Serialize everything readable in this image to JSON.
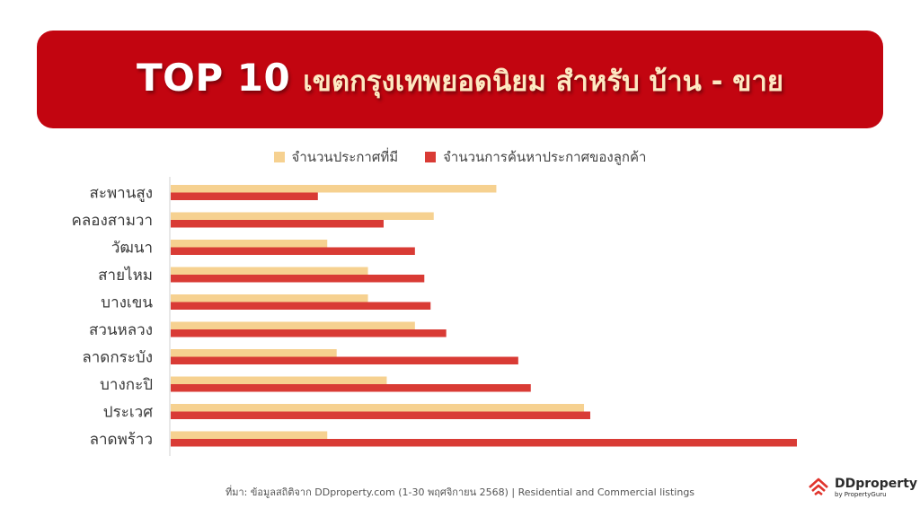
{
  "banner": {
    "title": "TOP 10",
    "subtitle": "เขตกรุงเทพยอดนิยม สำหรับ บ้าน - ขาย"
  },
  "colors": {
    "banner": "#c20510",
    "listings": "#f6d190",
    "searches": "#d93b35"
  },
  "chart_data": {
    "type": "bar",
    "orientation": "horizontal",
    "title": "",
    "xlabel": "",
    "ylabel": "",
    "grid": false,
    "legend_position": "top",
    "categories": [
      "สะพานสูง",
      "คลองสามวา",
      "วัฒนา",
      "สายไหม",
      "บางเขน",
      "สวนหลวง",
      "ลาดกระบัง",
      "บางกะปิ",
      "ประเวศ",
      "ลาดพร้าว"
    ],
    "series": [
      {
        "name": "จำนวนประกาศที่มี",
        "values": [
          52,
          42,
          25,
          31.5,
          31.5,
          39,
          26.5,
          34.5,
          66,
          25
        ]
      },
      {
        "name": "จำนวนการค้นหาประกาศของลูกค้า",
        "values": [
          23.5,
          34,
          39,
          40.5,
          41.5,
          44,
          55.5,
          57.5,
          67,
          100
        ]
      }
    ]
  },
  "footer": {
    "source": "ที่มา: ข้อมูลสถิติจาก DDproperty.com (1-30 พฤศจิกายน 2568) | Residential and Commercial listings"
  },
  "logo": {
    "name": "DDproperty",
    "byline": "by PropertyGuru",
    "icon": "ddproperty-house-icon"
  }
}
